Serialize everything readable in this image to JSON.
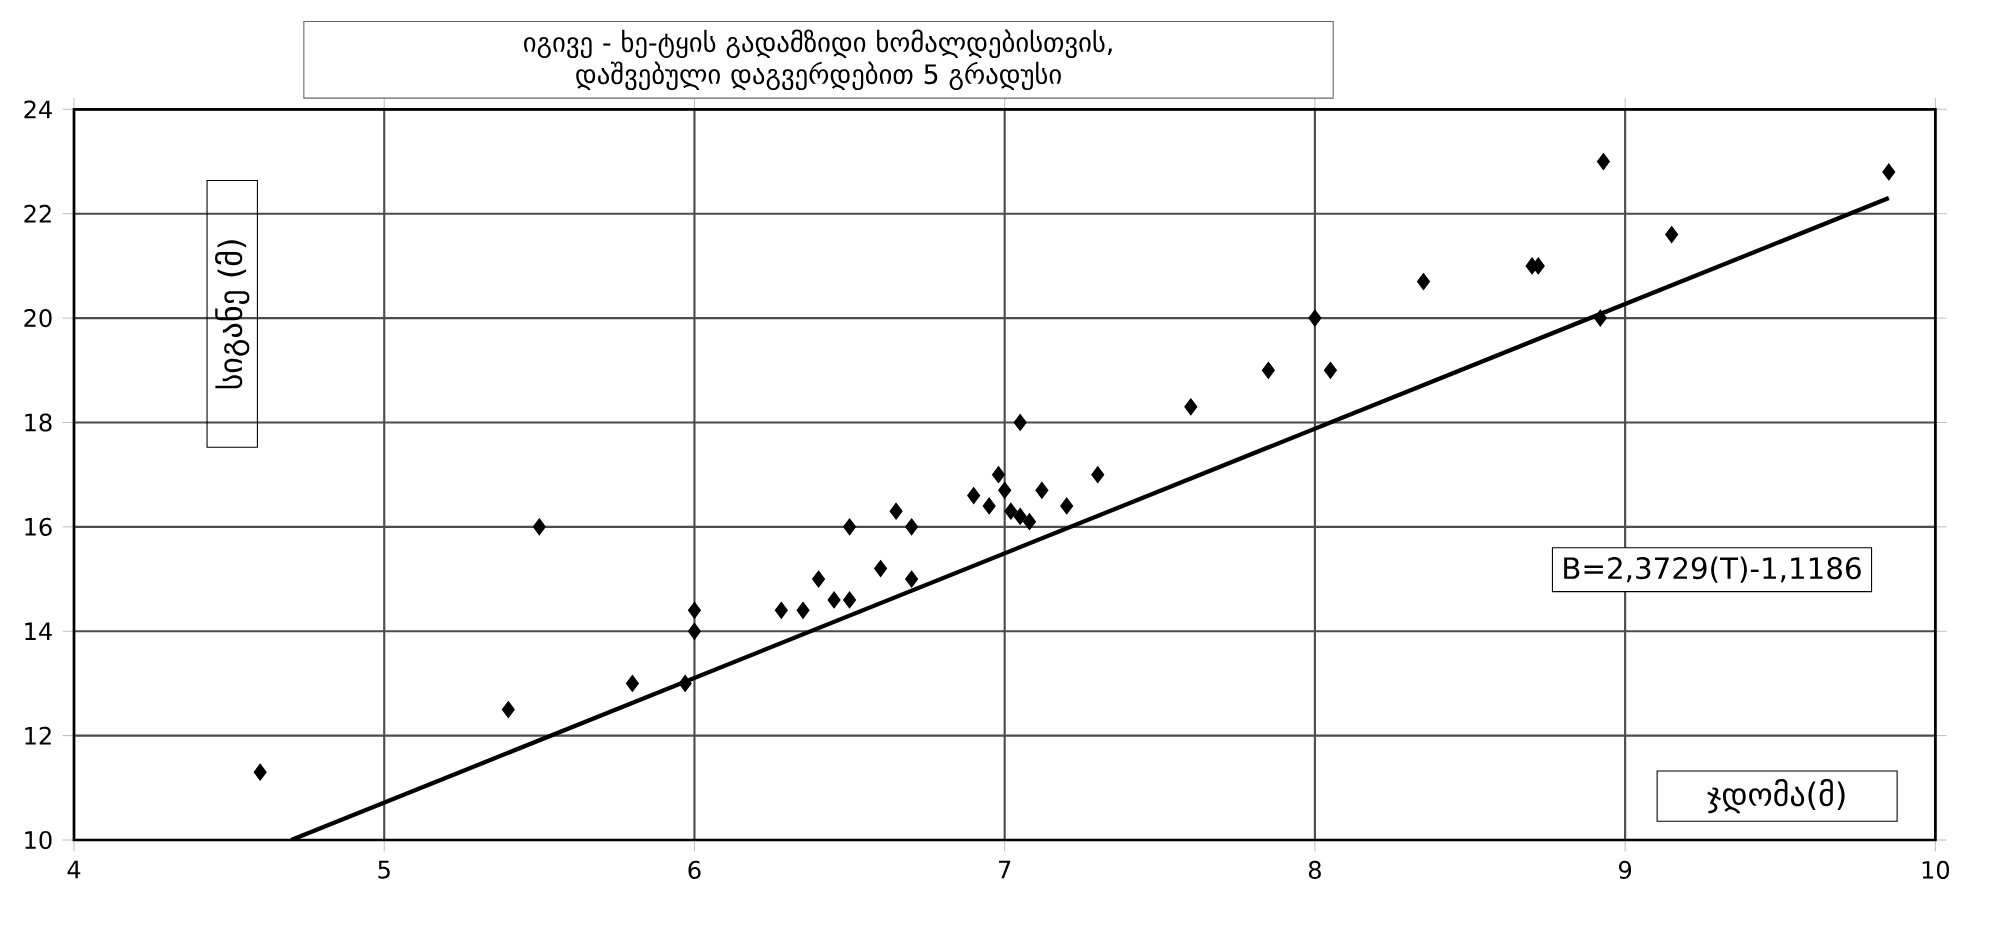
{
  "chart_data": {
    "type": "scatter",
    "title": "იგივე - ხე-ტყის გადამზიდი ხომალდებისთვის, დაშვებული დაგვერდებით 5 გრადუსი",
    "xlabel": "ჯდომა(მ)",
    "ylabel": "სიგანე (მ)",
    "annotations": [
      "B=2,3729(T)-1,1186"
    ],
    "xlim": [
      4,
      10
    ],
    "xticks": [
      4,
      5,
      6,
      7,
      8,
      9,
      10
    ],
    "ylim": [
      10,
      24
    ],
    "yticks": [
      10,
      12,
      14,
      16,
      18,
      20,
      22,
      24
    ],
    "grid": true,
    "marker": "diamond",
    "series": [
      {
        "color": "#000000",
        "x": [
          4.6,
          5.4,
          5.5,
          5.8,
          5.97,
          6.0,
          6.0,
          6.28,
          6.35,
          6.4,
          6.45,
          6.5,
          6.5,
          6.6,
          6.65,
          6.7,
          6.7,
          6.9,
          6.95,
          6.98,
          7.0,
          7.02,
          7.05,
          7.08,
          7.05,
          7.12,
          7.2,
          7.3,
          7.6,
          7.85,
          8.0,
          8.05,
          8.35,
          8.7,
          8.72,
          8.92,
          8.93,
          9.15,
          9.85
        ],
        "values": [
          11.3,
          12.5,
          16.0,
          13.0,
          13.0,
          14.4,
          14.0,
          14.4,
          14.4,
          15.0,
          14.6,
          14.6,
          16.0,
          15.2,
          16.3,
          16.0,
          15.0,
          16.6,
          16.4,
          17.0,
          16.7,
          16.3,
          16.2,
          16.1,
          18.0,
          16.7,
          16.4,
          17.0,
          18.3,
          19.0,
          20.0,
          19.0,
          20.7,
          21.0,
          21.0,
          20.0,
          23.0,
          21.6,
          22.8
        ]
      },
      {
        "type": "line",
        "color": "#000000",
        "marker": "none",
        "line_style": "solid",
        "x": [
          4.7,
          9.85
        ],
        "values": [
          10.0,
          22.3
        ]
      }
    ]
  }
}
